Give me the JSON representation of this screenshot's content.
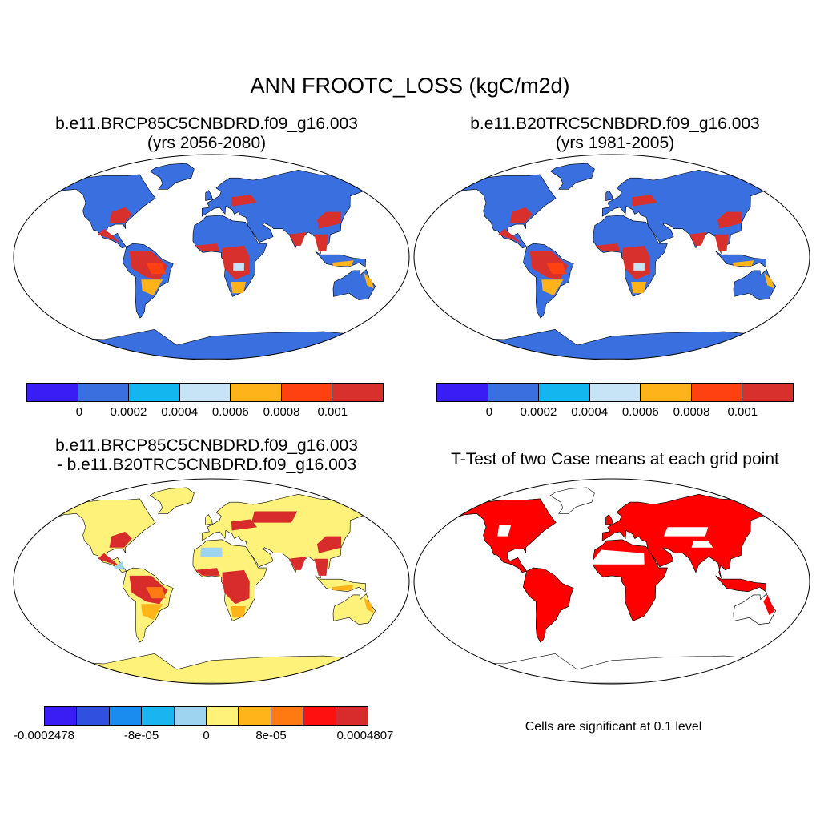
{
  "title": "ANN FROOTC_LOSS (kgC/m2d)",
  "panels": [
    {
      "line1": "b.e11.BRCP85C5CNBDRD.f09_g16.003",
      "line2": "(yrs 2056-2080)"
    },
    {
      "line1": "b.e11.B20TRC5CNBDRD.f09_g16.003",
      "line2": "(yrs 1981-2005)"
    },
    {
      "line1": "b.e11.BRCP85C5CNBDRD.f09_g16.003",
      "line2": "- b.e11.B20TRC5CNBDRD.f09_g16.003"
    },
    {
      "line1": "T-Test of two Case means at each grid point",
      "line2": ""
    }
  ],
  "colorbar_abs": {
    "colors": [
      "#3a1cf5",
      "#3a6fe0",
      "#14b6f0",
      "#c6e4f5",
      "#ffb31a",
      "#ff4010",
      "#d8302c"
    ],
    "labels": [
      "0",
      "0.0002",
      "0.0004",
      "0.0006",
      "0.0008",
      "0.001"
    ]
  },
  "colorbar_diff": {
    "colors": [
      "#3a1cf5",
      "#3050e0",
      "#1a8cf0",
      "#1ab4f0",
      "#9ed4f0",
      "#fff27a",
      "#ffb41a",
      "#ff7a10",
      "#ff1010",
      "#d82c2c"
    ],
    "labels": [
      "-0.0002478",
      "-8e-05",
      "0",
      "8e-05",
      "0.0004807"
    ]
  },
  "significance_note": "Cells are significant at 0.1 level",
  "map_colors": {
    "ocean": "#ffffff",
    "abs_base": "#3a6fe0",
    "abs_high": "#d8302c",
    "abs_mid": "#ff4010",
    "abs_orange": "#ffb31a",
    "abs_light": "#c6e4f5",
    "diff_base": "#fff27a",
    "diff_high": "#d82c2c",
    "diff_mid": "#ff7a10",
    "diff_orange": "#ffb41a",
    "diff_blue": "#9ed4f0",
    "sig": "#ff0000"
  }
}
